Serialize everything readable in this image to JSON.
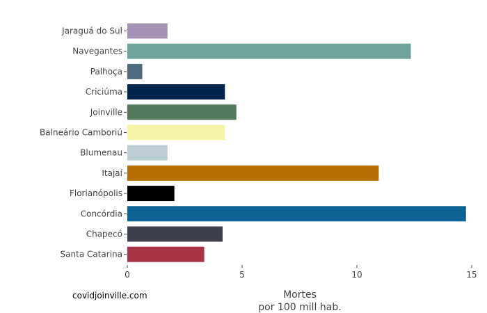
{
  "source_label": "covidjoinville.com",
  "chart_data": {
    "type": "bar",
    "orientation": "horizontal",
    "xlabel_line1": "Mortes",
    "xlabel_line2": "por 100 mill hab.",
    "xlim": [
      0,
      15
    ],
    "xticks": [
      0,
      5,
      10,
      15
    ],
    "grid": false,
    "categories": [
      "Jaraguá do Sul",
      "Navegantes",
      "Palhoça",
      "Criciúma",
      "Joinville",
      "Balneário Camboriú",
      "Blumenau",
      "Itajaí",
      "Florianópolis",
      "Concórdia",
      "Chapecó",
      "Santa Catarina"
    ],
    "values": [
      1.75,
      12.35,
      0.65,
      4.25,
      4.75,
      4.25,
      1.75,
      10.95,
      2.05,
      14.75,
      4.15,
      3.35
    ],
    "colors": [
      "#a392b4",
      "#6fa39b",
      "#4d6b7a",
      "#00264d",
      "#537a5a",
      "#f5f5a8",
      "#bccdd3",
      "#b87004",
      "#000000",
      "#0f6294",
      "#3e414d",
      "#a93346"
    ]
  }
}
